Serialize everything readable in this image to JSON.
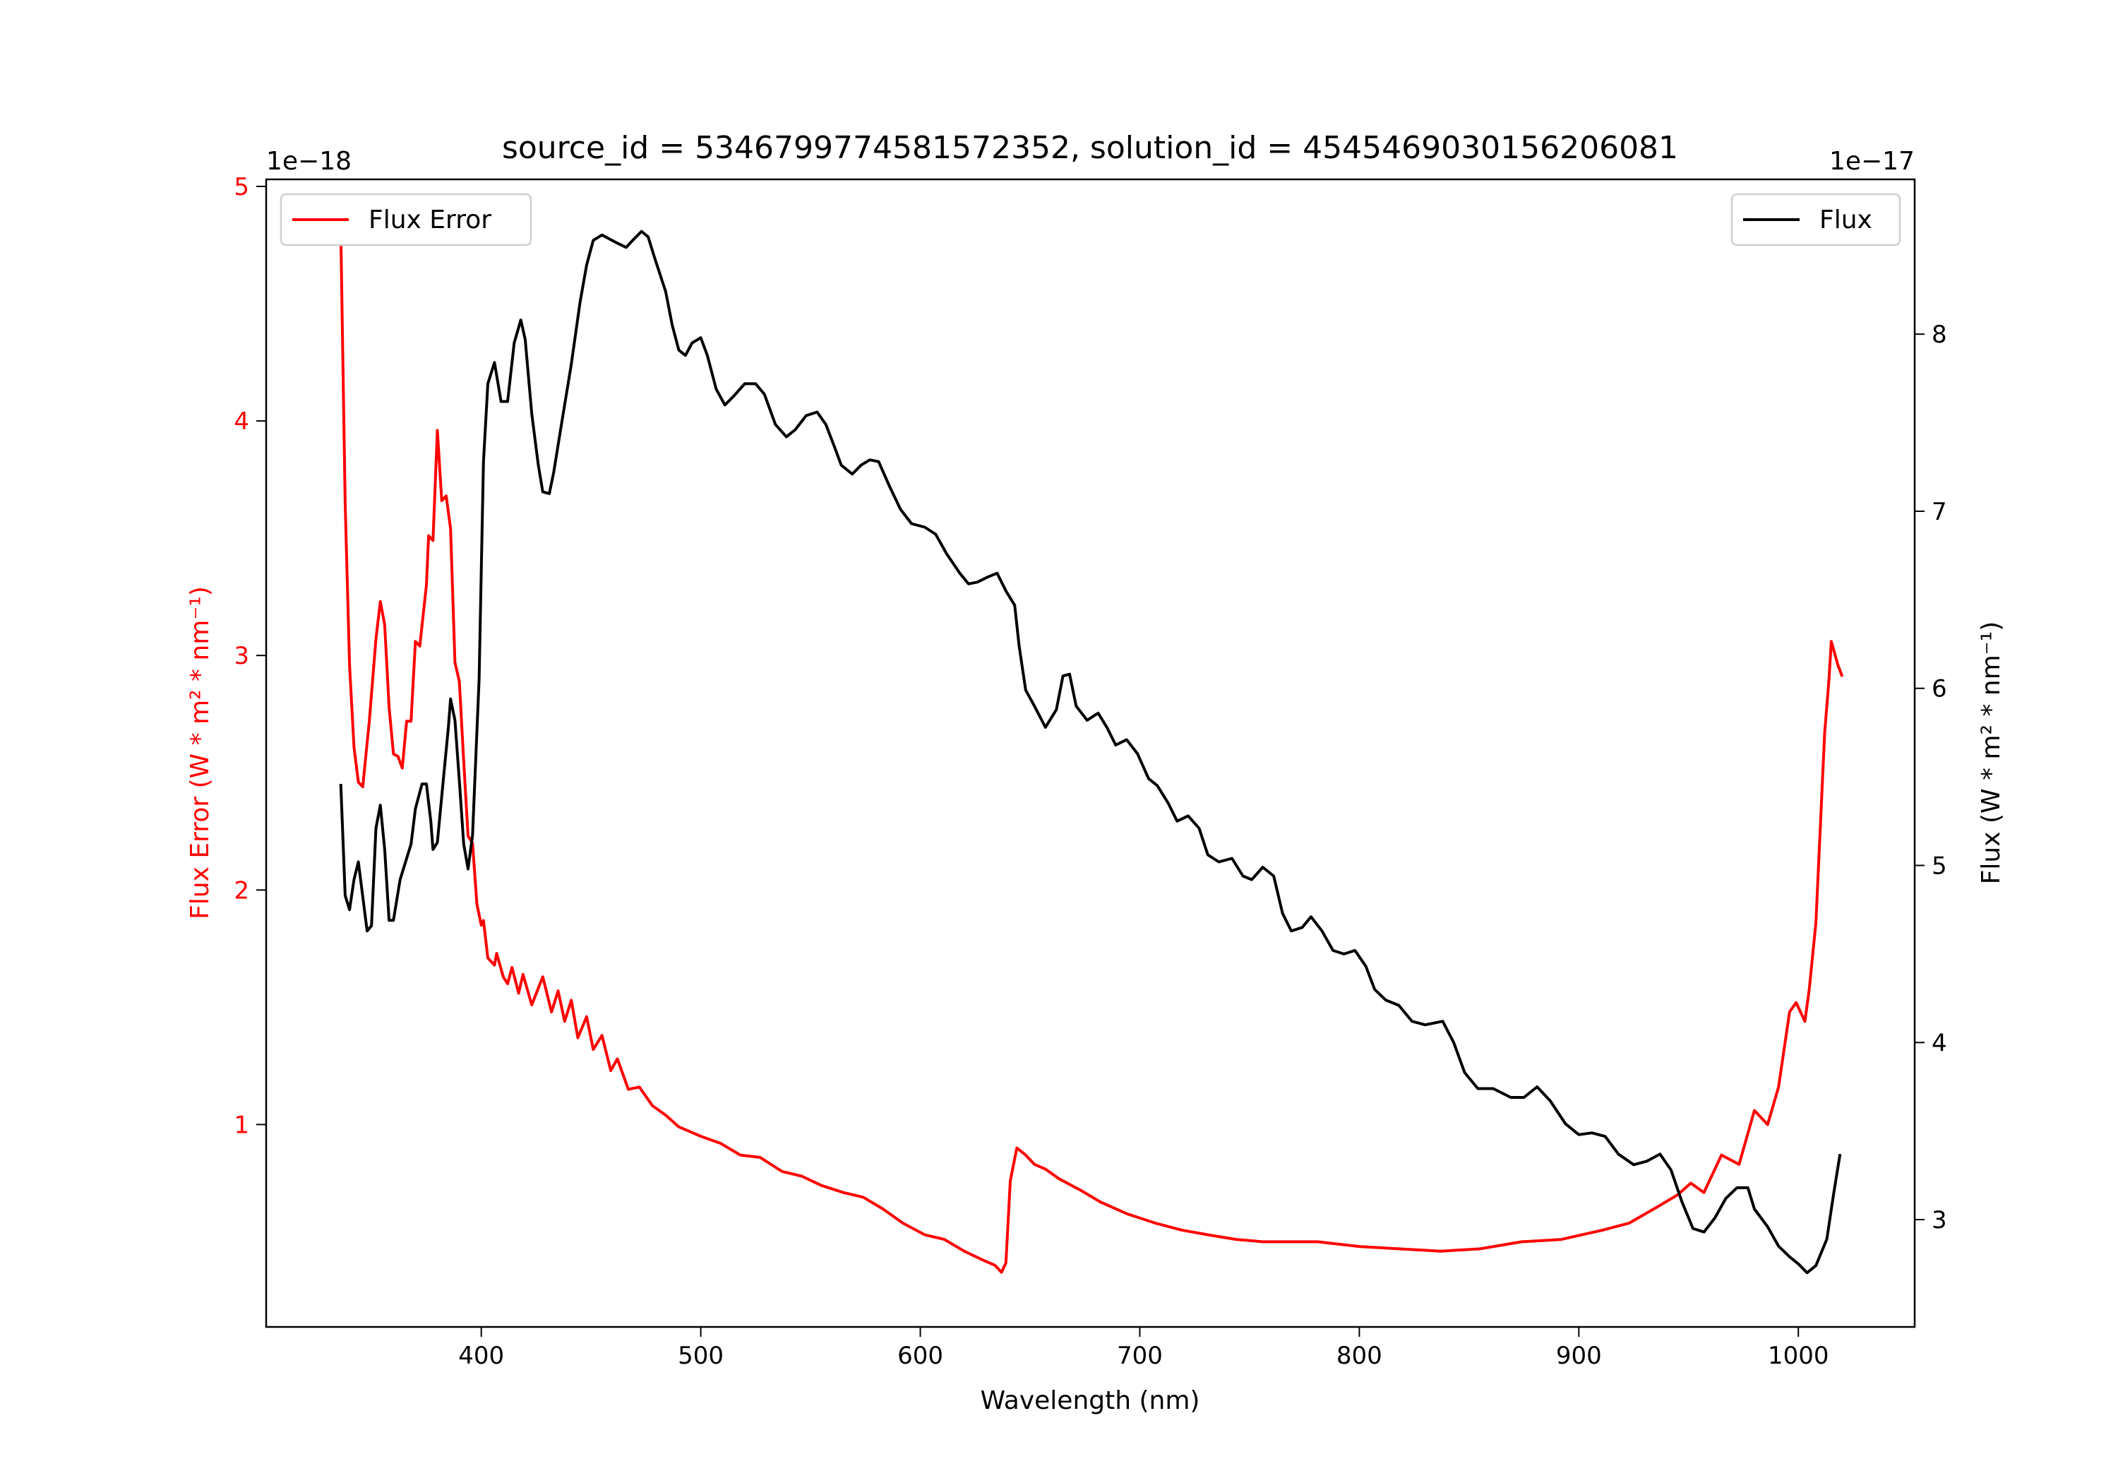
{
  "chart_data": {
    "type": "line",
    "title": "source_id = 5346799774581572352, solution_id = 4545469030156206081",
    "xlabel": "Wavelength (nm)",
    "ylabel_left": "Flux Error (W * m² * nm⁻¹)",
    "ylabel_right": "Flux (W * m² * nm⁻¹)",
    "offset_left": "1e−18",
    "offset_right": "1e−17",
    "xlim": [
      302,
      1053
    ],
    "ylim_left": [
      0.137,
      5.03
    ],
    "ylim_right": [
      2.394,
      8.874
    ],
    "xticks": [
      400,
      500,
      600,
      700,
      800,
      900,
      1000
    ],
    "yticks_left": [
      1,
      2,
      3,
      4,
      5
    ],
    "yticks_right": [
      3,
      4,
      5,
      6,
      7,
      8
    ],
    "grid": false,
    "colors": {
      "flux_error": "#ff0000",
      "flux": "#000000"
    },
    "series": [
      {
        "name": "Flux Error",
        "axis": "left",
        "legend_position": "top-left",
        "x": [
          336,
          338,
          340,
          342,
          344,
          346,
          349,
          352,
          354,
          356,
          358,
          360,
          362,
          364,
          366,
          368,
          370,
          372,
          375,
          376,
          378,
          380,
          382,
          384,
          386,
          388,
          390,
          392,
          394,
          396,
          398,
          400,
          401,
          403,
          406,
          407,
          410,
          412,
          414,
          417,
          419,
          423,
          428,
          432,
          435,
          438,
          441,
          444,
          448,
          451,
          455,
          459,
          462,
          467,
          472,
          478,
          484,
          490,
          500,
          509,
          518,
          527,
          537,
          546,
          555,
          565,
          574,
          583,
          592,
          602,
          611,
          620,
          629,
          634,
          637,
          639,
          641,
          644,
          648,
          652,
          657,
          663,
          673,
          682,
          694,
          707,
          719,
          731,
          744,
          756,
          769,
          781,
          800,
          818,
          837,
          855,
          874,
          892,
          911,
          923,
          936,
          945,
          951,
          957,
          965,
          973,
          980,
          986,
          991,
          996,
          999,
          1003,
          1005,
          1008,
          1012,
          1014,
          1015,
          1018,
          1020
        ],
        "y": [
          4.81,
          3.65,
          2.96,
          2.61,
          2.46,
          2.44,
          2.72,
          3.07,
          3.23,
          3.13,
          2.78,
          2.58,
          2.57,
          2.52,
          2.72,
          2.72,
          3.06,
          3.04,
          3.3,
          3.51,
          3.49,
          3.96,
          3.66,
          3.68,
          3.54,
          2.97,
          2.89,
          2.55,
          2.23,
          2.2,
          1.94,
          1.85,
          1.87,
          1.71,
          1.68,
          1.73,
          1.63,
          1.6,
          1.67,
          1.56,
          1.64,
          1.51,
          1.63,
          1.48,
          1.57,
          1.44,
          1.53,
          1.37,
          1.46,
          1.32,
          1.38,
          1.23,
          1.28,
          1.15,
          1.16,
          1.08,
          1.04,
          0.99,
          0.95,
          0.92,
          0.87,
          0.86,
          0.8,
          0.78,
          0.74,
          0.71,
          0.69,
          0.64,
          0.58,
          0.53,
          0.51,
          0.46,
          0.42,
          0.4,
          0.37,
          0.41,
          0.76,
          0.9,
          0.87,
          0.83,
          0.81,
          0.77,
          0.72,
          0.67,
          0.62,
          0.58,
          0.55,
          0.53,
          0.51,
          0.5,
          0.5,
          0.5,
          0.48,
          0.47,
          0.46,
          0.47,
          0.5,
          0.51,
          0.55,
          0.58,
          0.65,
          0.7,
          0.75,
          0.71,
          0.87,
          0.83,
          1.06,
          1.0,
          1.16,
          1.48,
          1.52,
          1.44,
          1.58,
          1.86,
          2.67,
          2.9,
          3.06,
          2.96,
          2.91
        ]
      },
      {
        "name": "Flux",
        "axis": "right",
        "legend_position": "top-right",
        "x": [
          336,
          338,
          340,
          342,
          344,
          348,
          350,
          352,
          354,
          356,
          358,
          360,
          363,
          365,
          368,
          370,
          373,
          375,
          377,
          378,
          380,
          383,
          385,
          386,
          388,
          390,
          392,
          394,
          396,
          399,
          401,
          403,
          406,
          409,
          412,
          415,
          418,
          420,
          423,
          426,
          428,
          431,
          433,
          436,
          441,
          445,
          448,
          451,
          455,
          461,
          466,
          469,
          473,
          476,
          479,
          484,
          487,
          490,
          493,
          496,
          500,
          503,
          507,
          511,
          515,
          520,
          525,
          529,
          534,
          539,
          543,
          548,
          553,
          557,
          561,
          564,
          569,
          573,
          577,
          581,
          586,
          591,
          596,
          602,
          607,
          612,
          618,
          622,
          626,
          631,
          635,
          639,
          643,
          645,
          648,
          652,
          657,
          662,
          665,
          668,
          671,
          676,
          681,
          685,
          689,
          694,
          699,
          704,
          708,
          713,
          717,
          722,
          727,
          731,
          736,
          742,
          747,
          751,
          756,
          761,
          765,
          769,
          774,
          778,
          783,
          788,
          793,
          798,
          803,
          807,
          812,
          818,
          824,
          830,
          838,
          843,
          848,
          854,
          861,
          869,
          875,
          881,
          887,
          894,
          900,
          906,
          912,
          918,
          925,
          931,
          937,
          942,
          947,
          952,
          957,
          962,
          967,
          972,
          977,
          980,
          986,
          991,
          996,
          1000,
          1004,
          1008,
          1013,
          1016,
          1019
        ],
        "y": [
          5.46,
          4.83,
          4.75,
          4.92,
          5.02,
          4.63,
          4.66,
          5.21,
          5.34,
          5.09,
          4.69,
          4.69,
          4.92,
          5.0,
          5.12,
          5.32,
          5.46,
          5.46,
          5.25,
          5.09,
          5.13,
          5.52,
          5.78,
          5.94,
          5.82,
          5.48,
          5.12,
          4.98,
          5.17,
          6.05,
          7.28,
          7.72,
          7.84,
          7.62,
          7.62,
          7.95,
          8.08,
          7.97,
          7.55,
          7.26,
          7.11,
          7.1,
          7.22,
          7.45,
          7.83,
          8.18,
          8.39,
          8.53,
          8.56,
          8.52,
          8.49,
          8.53,
          8.58,
          8.55,
          8.43,
          8.24,
          8.05,
          7.91,
          7.88,
          7.95,
          7.98,
          7.88,
          7.69,
          7.6,
          7.65,
          7.72,
          7.72,
          7.66,
          7.49,
          7.42,
          7.46,
          7.54,
          7.56,
          7.49,
          7.36,
          7.26,
          7.21,
          7.26,
          7.29,
          7.28,
          7.14,
          7.01,
          6.93,
          6.91,
          6.87,
          6.76,
          6.65,
          6.59,
          6.6,
          6.63,
          6.65,
          6.55,
          6.47,
          6.24,
          5.99,
          5.9,
          5.78,
          5.88,
          6.07,
          6.08,
          5.9,
          5.82,
          5.86,
          5.78,
          5.68,
          5.71,
          5.63,
          5.49,
          5.45,
          5.35,
          5.25,
          5.28,
          5.21,
          5.06,
          5.02,
          5.04,
          4.94,
          4.92,
          4.99,
          4.94,
          4.73,
          4.63,
          4.65,
          4.71,
          4.63,
          4.52,
          4.5,
          4.52,
          4.43,
          4.3,
          4.24,
          4.21,
          4.12,
          4.1,
          4.12,
          4.0,
          3.83,
          3.74,
          3.74,
          3.69,
          3.69,
          3.75,
          3.67,
          3.54,
          3.48,
          3.49,
          3.47,
          3.37,
          3.31,
          3.33,
          3.37,
          3.28,
          3.1,
          2.95,
          2.93,
          3.01,
          3.12,
          3.18,
          3.18,
          3.06,
          2.96,
          2.85,
          2.79,
          2.75,
          2.7,
          2.74,
          2.89,
          3.14,
          3.37
        ]
      }
    ]
  }
}
